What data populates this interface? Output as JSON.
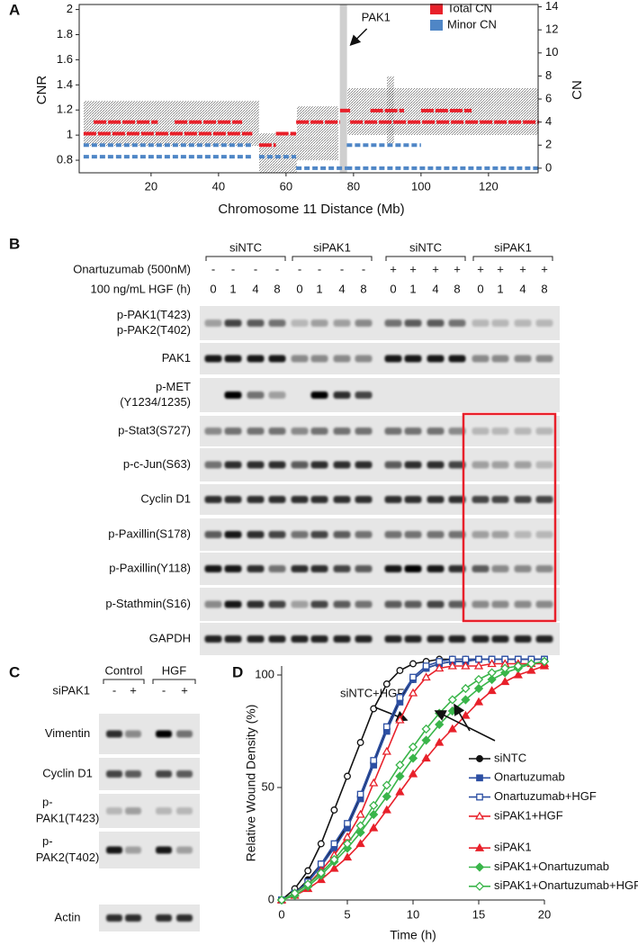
{
  "panel_labels": [
    "A",
    "B",
    "C",
    "D"
  ],
  "chart_data": [
    {
      "type": "segments",
      "xlabel": "Chromosome 11 Distance (Mb)",
      "ylabel": "CNR",
      "y2label": "CN",
      "xlim": [
        -1.3,
        134.7
      ],
      "ylim": [
        0.7,
        2.04
      ],
      "y2lim": [
        -0.4,
        14.2
      ],
      "xticks": [
        20,
        40,
        60,
        80,
        100,
        120
      ],
      "yticks": [
        0.8,
        1,
        1.2,
        1.4,
        1.6,
        1.8,
        2
      ],
      "y2ticks": [
        0,
        2,
        4,
        6,
        8,
        10,
        12,
        14
      ],
      "series": [
        {
          "name": "Total CN",
          "color": "#e8202a",
          "axis": "y2",
          "segments": [
            [
              0,
              50,
              3
            ],
            [
              3,
              22,
              4
            ],
            [
              27,
              47,
              4
            ],
            [
              52,
              57,
              2
            ],
            [
              57,
              63,
              3
            ],
            [
              63,
              76,
              4
            ],
            [
              76,
              79,
              5
            ],
            [
              79,
              135,
              4
            ],
            [
              85,
              95,
              5
            ],
            [
              100,
              115,
              5
            ]
          ]
        },
        {
          "name": "Minor CN",
          "color": "#4f86c6",
          "axis": "y2",
          "segments": [
            [
              0,
              50,
              2
            ],
            [
              0,
              50,
              1
            ],
            [
              52,
              63,
              1
            ],
            [
              63,
              78,
              0
            ],
            [
              78,
              100,
              2
            ],
            [
              78,
              135,
              0
            ]
          ]
        }
      ],
      "annotations": [
        {
          "text": "PAK1",
          "x": 77
        }
      ]
    },
    {
      "type": "line",
      "xlabel": "Time (h)",
      "ylabel": "Relative Wound Density (%)",
      "xlim": [
        0,
        20
      ],
      "ylim": [
        0,
        104
      ],
      "xticks": [
        0,
        5,
        10,
        15,
        20
      ],
      "yticks": [
        0,
        50,
        100
      ],
      "x": [
        0,
        1,
        2,
        3,
        4,
        5,
        6,
        7,
        8,
        9,
        10,
        11,
        12,
        13,
        14,
        15,
        16,
        17,
        18,
        19,
        20
      ],
      "series": [
        {
          "name": "siNTC+HGF",
          "color": "#111111",
          "marker": "circle",
          "filled": false,
          "direct_label": true,
          "values": [
            0,
            5,
            13,
            25,
            40,
            55,
            70,
            85,
            96,
            102,
            105,
            106,
            107,
            107,
            107,
            107,
            null,
            null,
            null,
            null,
            null
          ]
        },
        {
          "name": "siNTC",
          "color": "#111111",
          "marker": "circle",
          "filled": true,
          "values": [
            0,
            3,
            9,
            16,
            24,
            33,
            46,
            61,
            76,
            89,
            98,
            103,
            105,
            106,
            106,
            107,
            107,
            107,
            107,
            107,
            107
          ]
        },
        {
          "name": "Onartuzumab",
          "color": "#2c4fa3",
          "marker": "square",
          "filled": true,
          "values": [
            0,
            3,
            8,
            15,
            23,
            32,
            45,
            60,
            75,
            88,
            98,
            103,
            105,
            106,
            106,
            107,
            107,
            107,
            107,
            107,
            107
          ]
        },
        {
          "name": "Onartuzumab+HGF",
          "color": "#2c4fa3",
          "marker": "square",
          "filled": false,
          "values": [
            0,
            3,
            8,
            16,
            25,
            34,
            47,
            62,
            77,
            90,
            99,
            104,
            106,
            107,
            107,
            107,
            107,
            107,
            107,
            107,
            107
          ]
        },
        {
          "name": "siPAK1+HGF",
          "color": "#e8202a",
          "marker": "triangle",
          "filled": false,
          "values": [
            0,
            3,
            7,
            13,
            20,
            28,
            38,
            52,
            66,
            80,
            92,
            99,
            103,
            104,
            104,
            104,
            105,
            105,
            105,
            105,
            105
          ]
        },
        {
          "name": "siPAK1",
          "color": "#e8202a",
          "marker": "triangle",
          "filled": true,
          "values": [
            0,
            2,
            5,
            9,
            14,
            19,
            25,
            32,
            40,
            48,
            56,
            63,
            70,
            76,
            82,
            88,
            93,
            97,
            100,
            102,
            104
          ]
        },
        {
          "name": "siPAK1+Onartuzumab",
          "color": "#3ab54a",
          "marker": "diamond",
          "filled": true,
          "values": [
            0,
            2,
            6,
            11,
            17,
            23,
            30,
            38,
            46,
            55,
            63,
            71,
            78,
            84,
            89,
            94,
            98,
            101,
            103,
            105,
            106
          ]
        },
        {
          "name": "siPAK1+Onartuzumab+HGF",
          "color": "#3ab54a",
          "marker": "diamond",
          "filled": false,
          "values": [
            0,
            3,
            7,
            12,
            18,
            25,
            33,
            42,
            51,
            60,
            68,
            76,
            83,
            89,
            94,
            98,
            101,
            103,
            104,
            105,
            106
          ]
        }
      ]
    }
  ],
  "blots": {
    "b": {
      "group_labels": [
        "siNTC",
        "siPAK1",
        "siNTC",
        "siPAK1"
      ],
      "treatment_label": "Onartuzumab (500nM)",
      "treatment": [
        "-",
        "-",
        "-",
        "-",
        "-",
        "-",
        "-",
        "-",
        "+",
        "+",
        "+",
        "+",
        "+",
        "+",
        "+",
        "+"
      ],
      "time_label": "100 ng/mL HGF (h)",
      "times": [
        "0",
        "1",
        "4",
        "8",
        "0",
        "1",
        "4",
        "8",
        "0",
        "1",
        "4",
        "8",
        "0",
        "1",
        "4",
        "8"
      ],
      "rows": [
        {
          "labels": [
            "p-PAK1(T423)",
            "p-PAK2(T402)"
          ]
        },
        {
          "labels": [
            "PAK1"
          ]
        },
        {
          "labels": [
            "p-MET",
            "(Y1234/1235)"
          ]
        },
        {
          "labels": [
            "p-Stat3(S727)"
          ]
        },
        {
          "labels": [
            "p-c-Jun(S63)"
          ]
        },
        {
          "labels": [
            "Cyclin D1"
          ]
        },
        {
          "labels": [
            "p-Paxillin(S178)"
          ]
        },
        {
          "labels": [
            "p-Paxillin(Y118)"
          ]
        },
        {
          "labels": [
            "p-Stathmin(S16)"
          ]
        },
        {
          "labels": [
            "GAPDH"
          ]
        }
      ]
    },
    "c": {
      "group_labels": [
        "Control",
        "HGF"
      ],
      "treatment_label": "siPAK1",
      "treatment": [
        "-",
        "+",
        "-",
        "+"
      ],
      "rows": [
        {
          "labels": [
            "Vimentin"
          ]
        },
        {
          "labels": [
            "Cyclin D1"
          ]
        },
        {
          "labels": [
            "p-",
            "PAK1(T423)"
          ]
        },
        {
          "labels": [
            "p-",
            "PAK2(T402)"
          ]
        },
        {
          "labels": [
            "Actin"
          ]
        }
      ]
    }
  }
}
